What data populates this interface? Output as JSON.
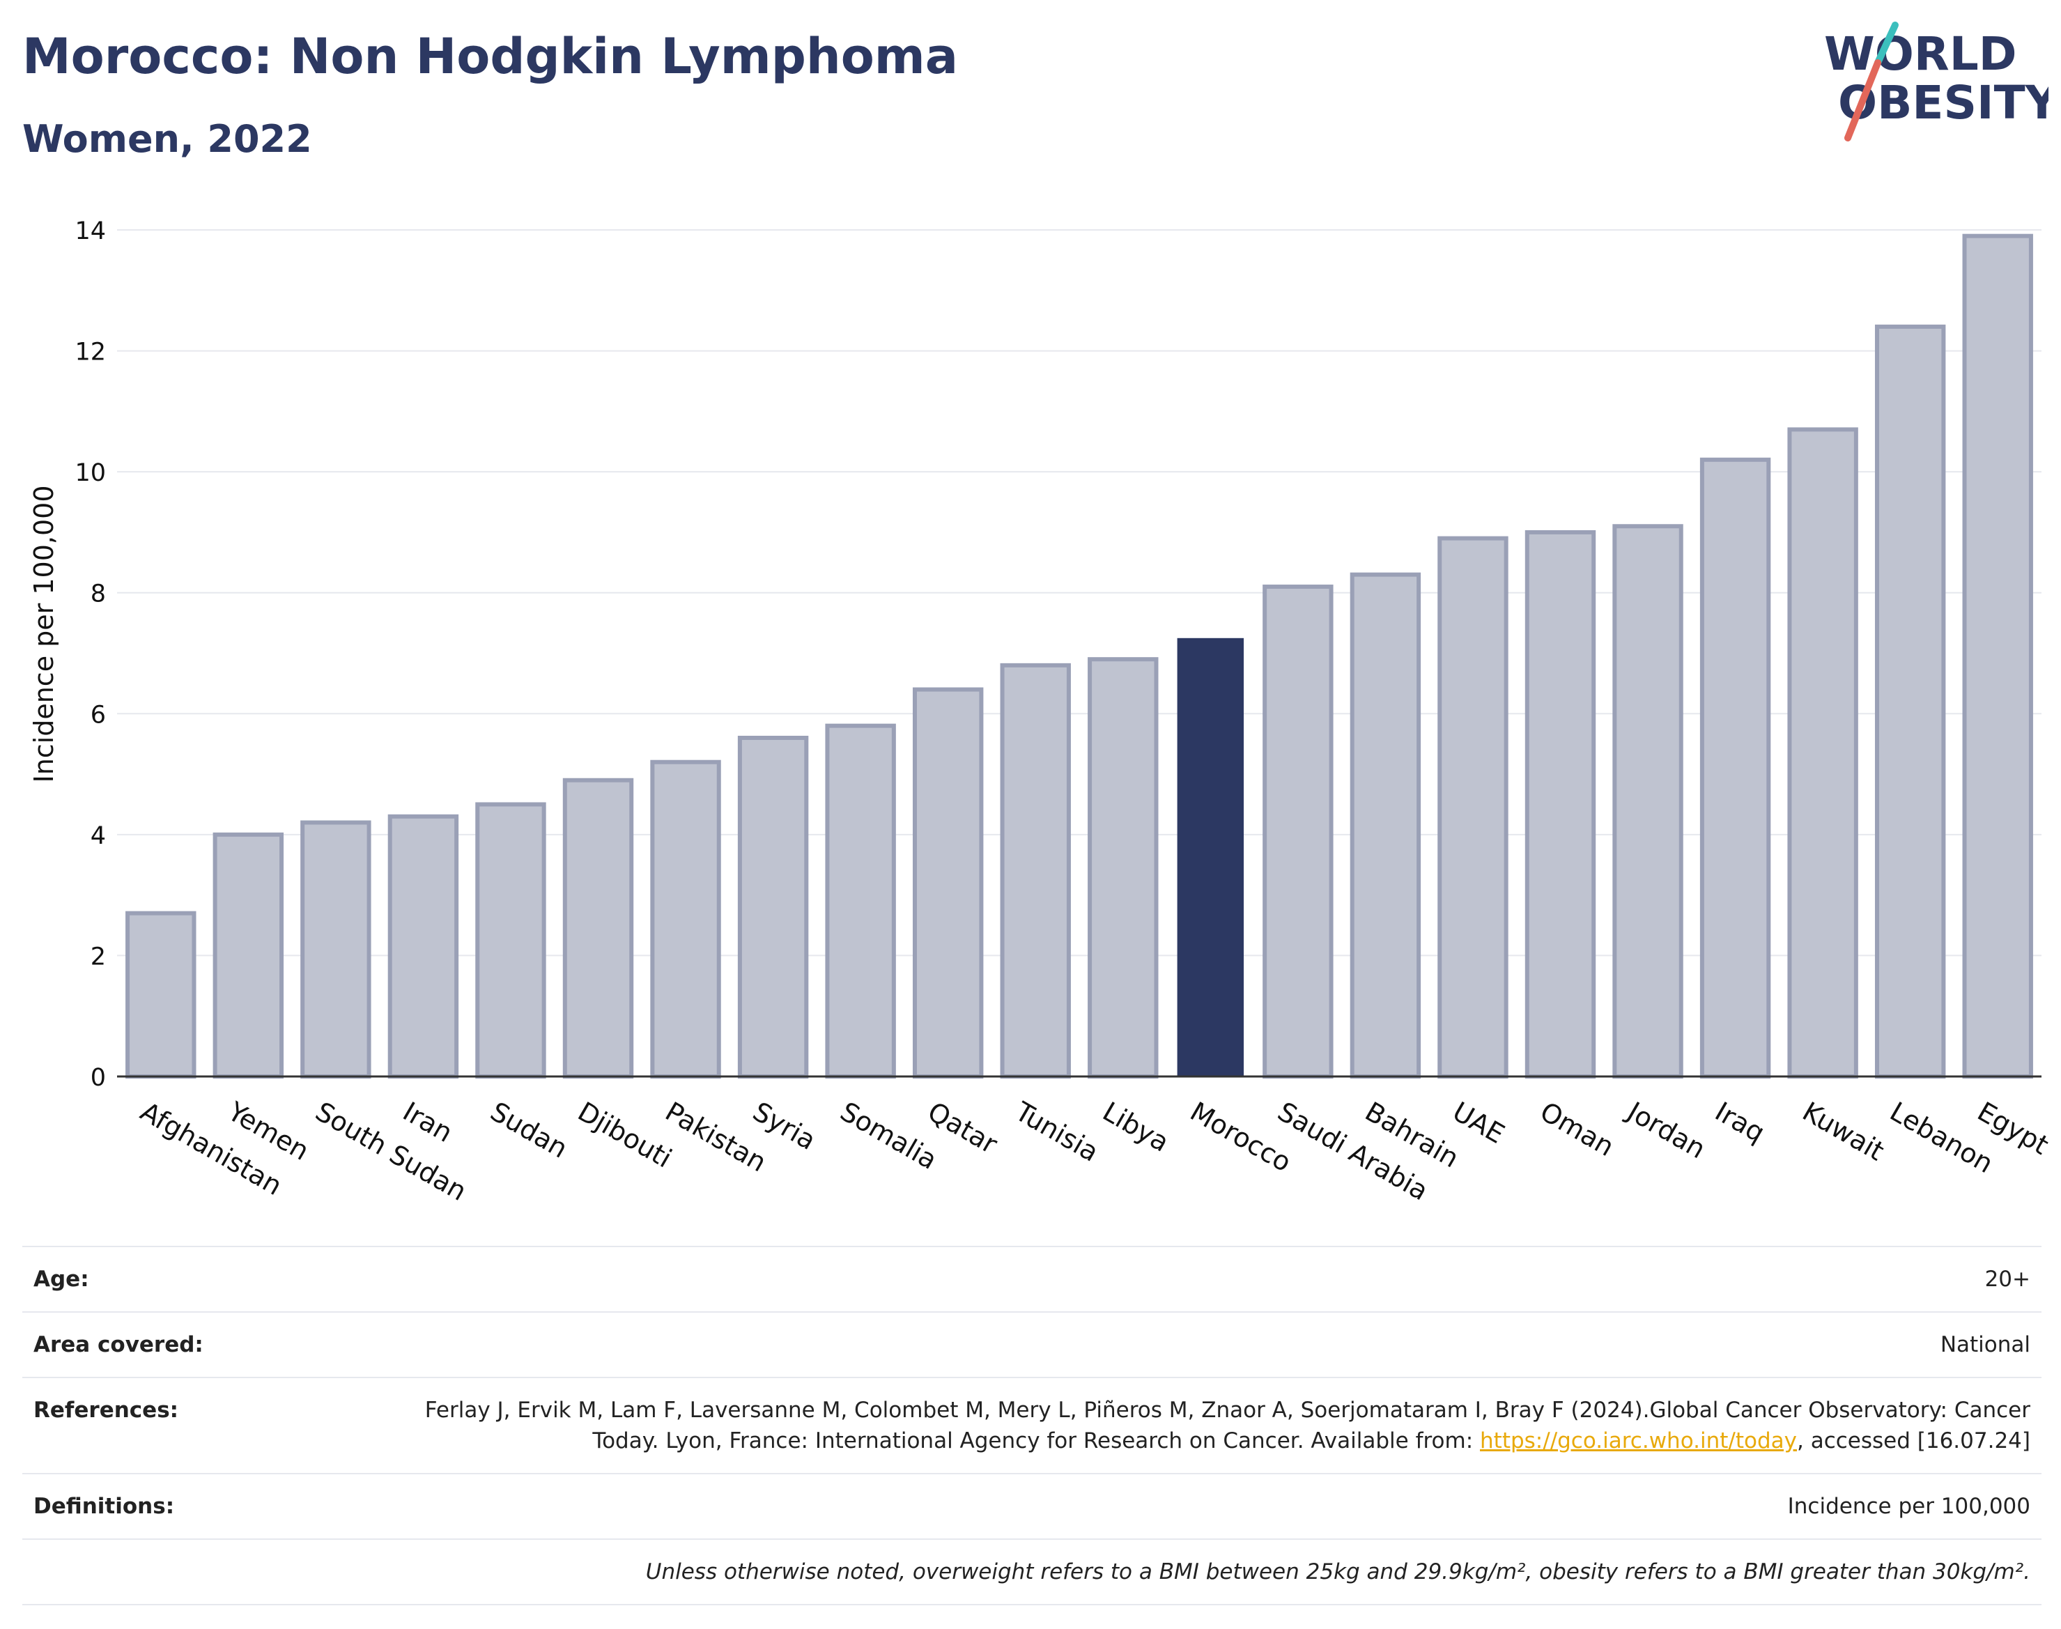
{
  "header": {
    "title": "Morocco: Non Hodgkin Lymphoma",
    "subtitle": "Women, 2022"
  },
  "logo": {
    "line1": "WORLD",
    "line2": "OBESITY",
    "colors": {
      "text": "#2c3862",
      "slash_teal": "#3bbfbd",
      "slash_red": "#e2675a"
    }
  },
  "colors": {
    "highlight_bar": "#2c3862",
    "other_bar_fill": "#bfc3d0",
    "other_bar_stroke": "#9aa0b6",
    "grid": "#e6e8ee",
    "axis_text": "#111111",
    "link": "#e8a90b"
  },
  "chart_data": {
    "type": "bar",
    "title": "Morocco: Non Hodgkin Lymphoma",
    "subtitle": "Women, 2022",
    "xlabel": "",
    "ylabel": "Incidence per 100,000",
    "ylim": [
      0,
      14
    ],
    "yticks": [
      0,
      2,
      4,
      6,
      8,
      10,
      12,
      14
    ],
    "grid": true,
    "legend": "none",
    "highlight": "Morocco",
    "categories": [
      "Afghanistan",
      "Yemen",
      "South Sudan",
      "Iran",
      "Sudan",
      "Djibouti",
      "Pakistan",
      "Syria",
      "Somalia",
      "Qatar",
      "Tunisia",
      "Libya",
      "Morocco",
      "Saudi Arabia",
      "Bahrain",
      "UAE",
      "Oman",
      "Jordan",
      "Iraq",
      "Kuwait",
      "Lebanon",
      "Egypt"
    ],
    "values": [
      2.7,
      4.0,
      4.2,
      4.3,
      4.5,
      4.9,
      5.2,
      5.6,
      5.8,
      6.4,
      6.8,
      6.9,
      7.25,
      8.1,
      8.3,
      8.9,
      9.0,
      9.1,
      10.2,
      10.7,
      12.4,
      13.9
    ]
  },
  "info": {
    "age_label": "Age:",
    "age_value": "20+",
    "area_label": "Area covered:",
    "area_value": "National",
    "references_label": "References:",
    "references_text_1": "Ferlay J, Ervik M, Lam F, Laversanne M, Colombet M, Mery L, Piñeros M, Znaor A, Soerjomataram I, Bray F (2024).Global Cancer Observatory: Cancer Today. Lyon, France: International Agency for Research on Cancer. Available from: ",
    "references_link": "https://gco.iarc.who.int/today",
    "references_text_2": ", accessed [16.07.24]",
    "definitions_label": "Definitions:",
    "definitions_value": "Incidence per 100,000",
    "note": "Unless otherwise noted, overweight refers to a BMI between 25kg and 29.9kg/m², obesity refers to a BMI greater than 30kg/m²."
  }
}
